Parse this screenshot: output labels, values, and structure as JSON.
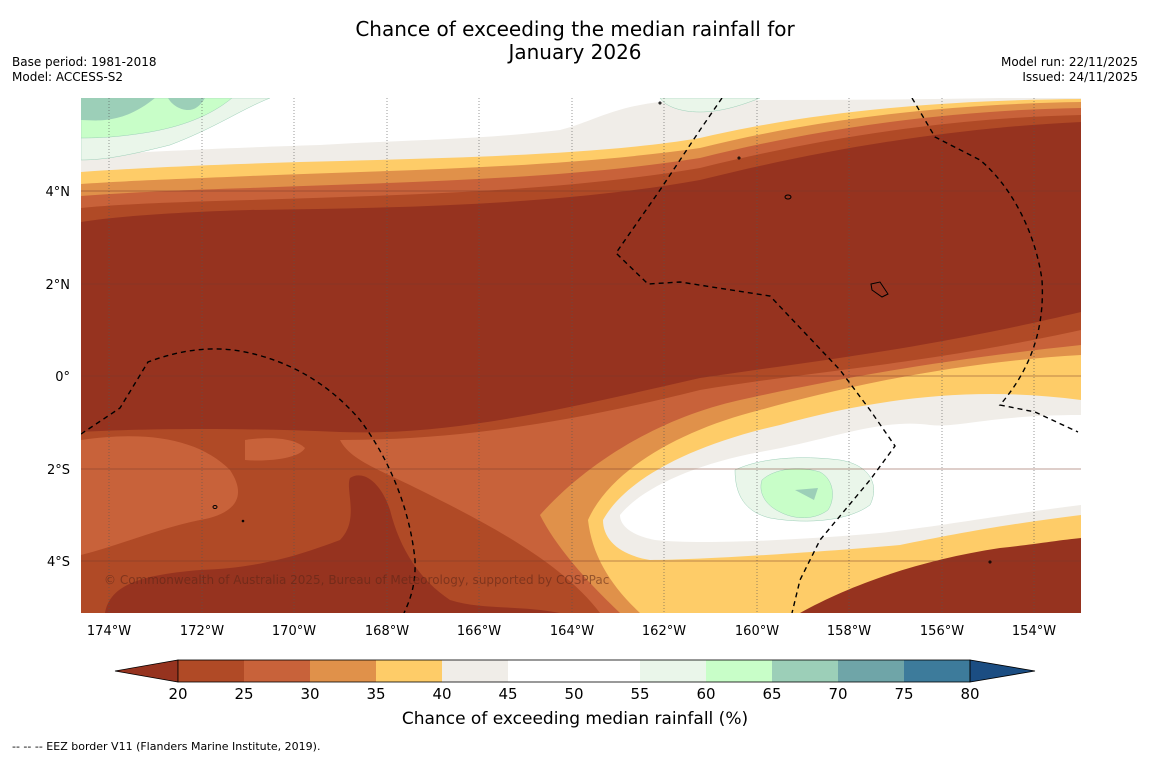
{
  "title_line1": "Chance of exceeding the median rainfall for",
  "title_line2": "January 2026",
  "base_period": "Base period: 1981-2018",
  "model": "Model: ACCESS-S2",
  "model_run": "Model run: 22/11/2025",
  "issued": "Issued: 24/11/2025",
  "copyright": "© Commonwealth of Australia 2025, Bureau of Meteorology, supported by COSPPac",
  "footnote": "--  --  -- EEZ border V11 (Flanders Marine Institute, 2019).",
  "longitude_labels": [
    "174°W",
    "172°W",
    "170°W",
    "168°W",
    "166°W",
    "164°W",
    "162°W",
    "160°W",
    "158°W",
    "156°W",
    "154°W"
  ],
  "latitude_labels": [
    "4°N",
    "2°N",
    "0°",
    "2°S",
    "4°S"
  ],
  "colorbar": {
    "title": "Chance of exceeding median rainfall (%)",
    "ticks": [
      "20",
      "25",
      "30",
      "35",
      "40",
      "45",
      "50",
      "55",
      "60",
      "65",
      "70",
      "75",
      "80"
    ],
    "colors": [
      "#96331f",
      "#b04a26",
      "#c8623a",
      "#e0914a",
      "#fecc68",
      "#f0ede8",
      "#ffffff",
      "#ffffff",
      "#eaf6ea",
      "#c8fec8",
      "#9ccfb8",
      "#6fa5a8",
      "#3d7b9b",
      "#1b4d82"
    ]
  },
  "colors": {
    "deep_brown": "#96331f",
    "brown": "#b04a26",
    "orange_brown": "#c8623a",
    "orange": "#e0914a",
    "yellow": "#fecc68",
    "beige": "#f0ede8",
    "white": "#ffffff",
    "pale_green": "#eaf6ea",
    "light_green": "#c8fec8",
    "teal_green": "#9ccfb8"
  }
}
